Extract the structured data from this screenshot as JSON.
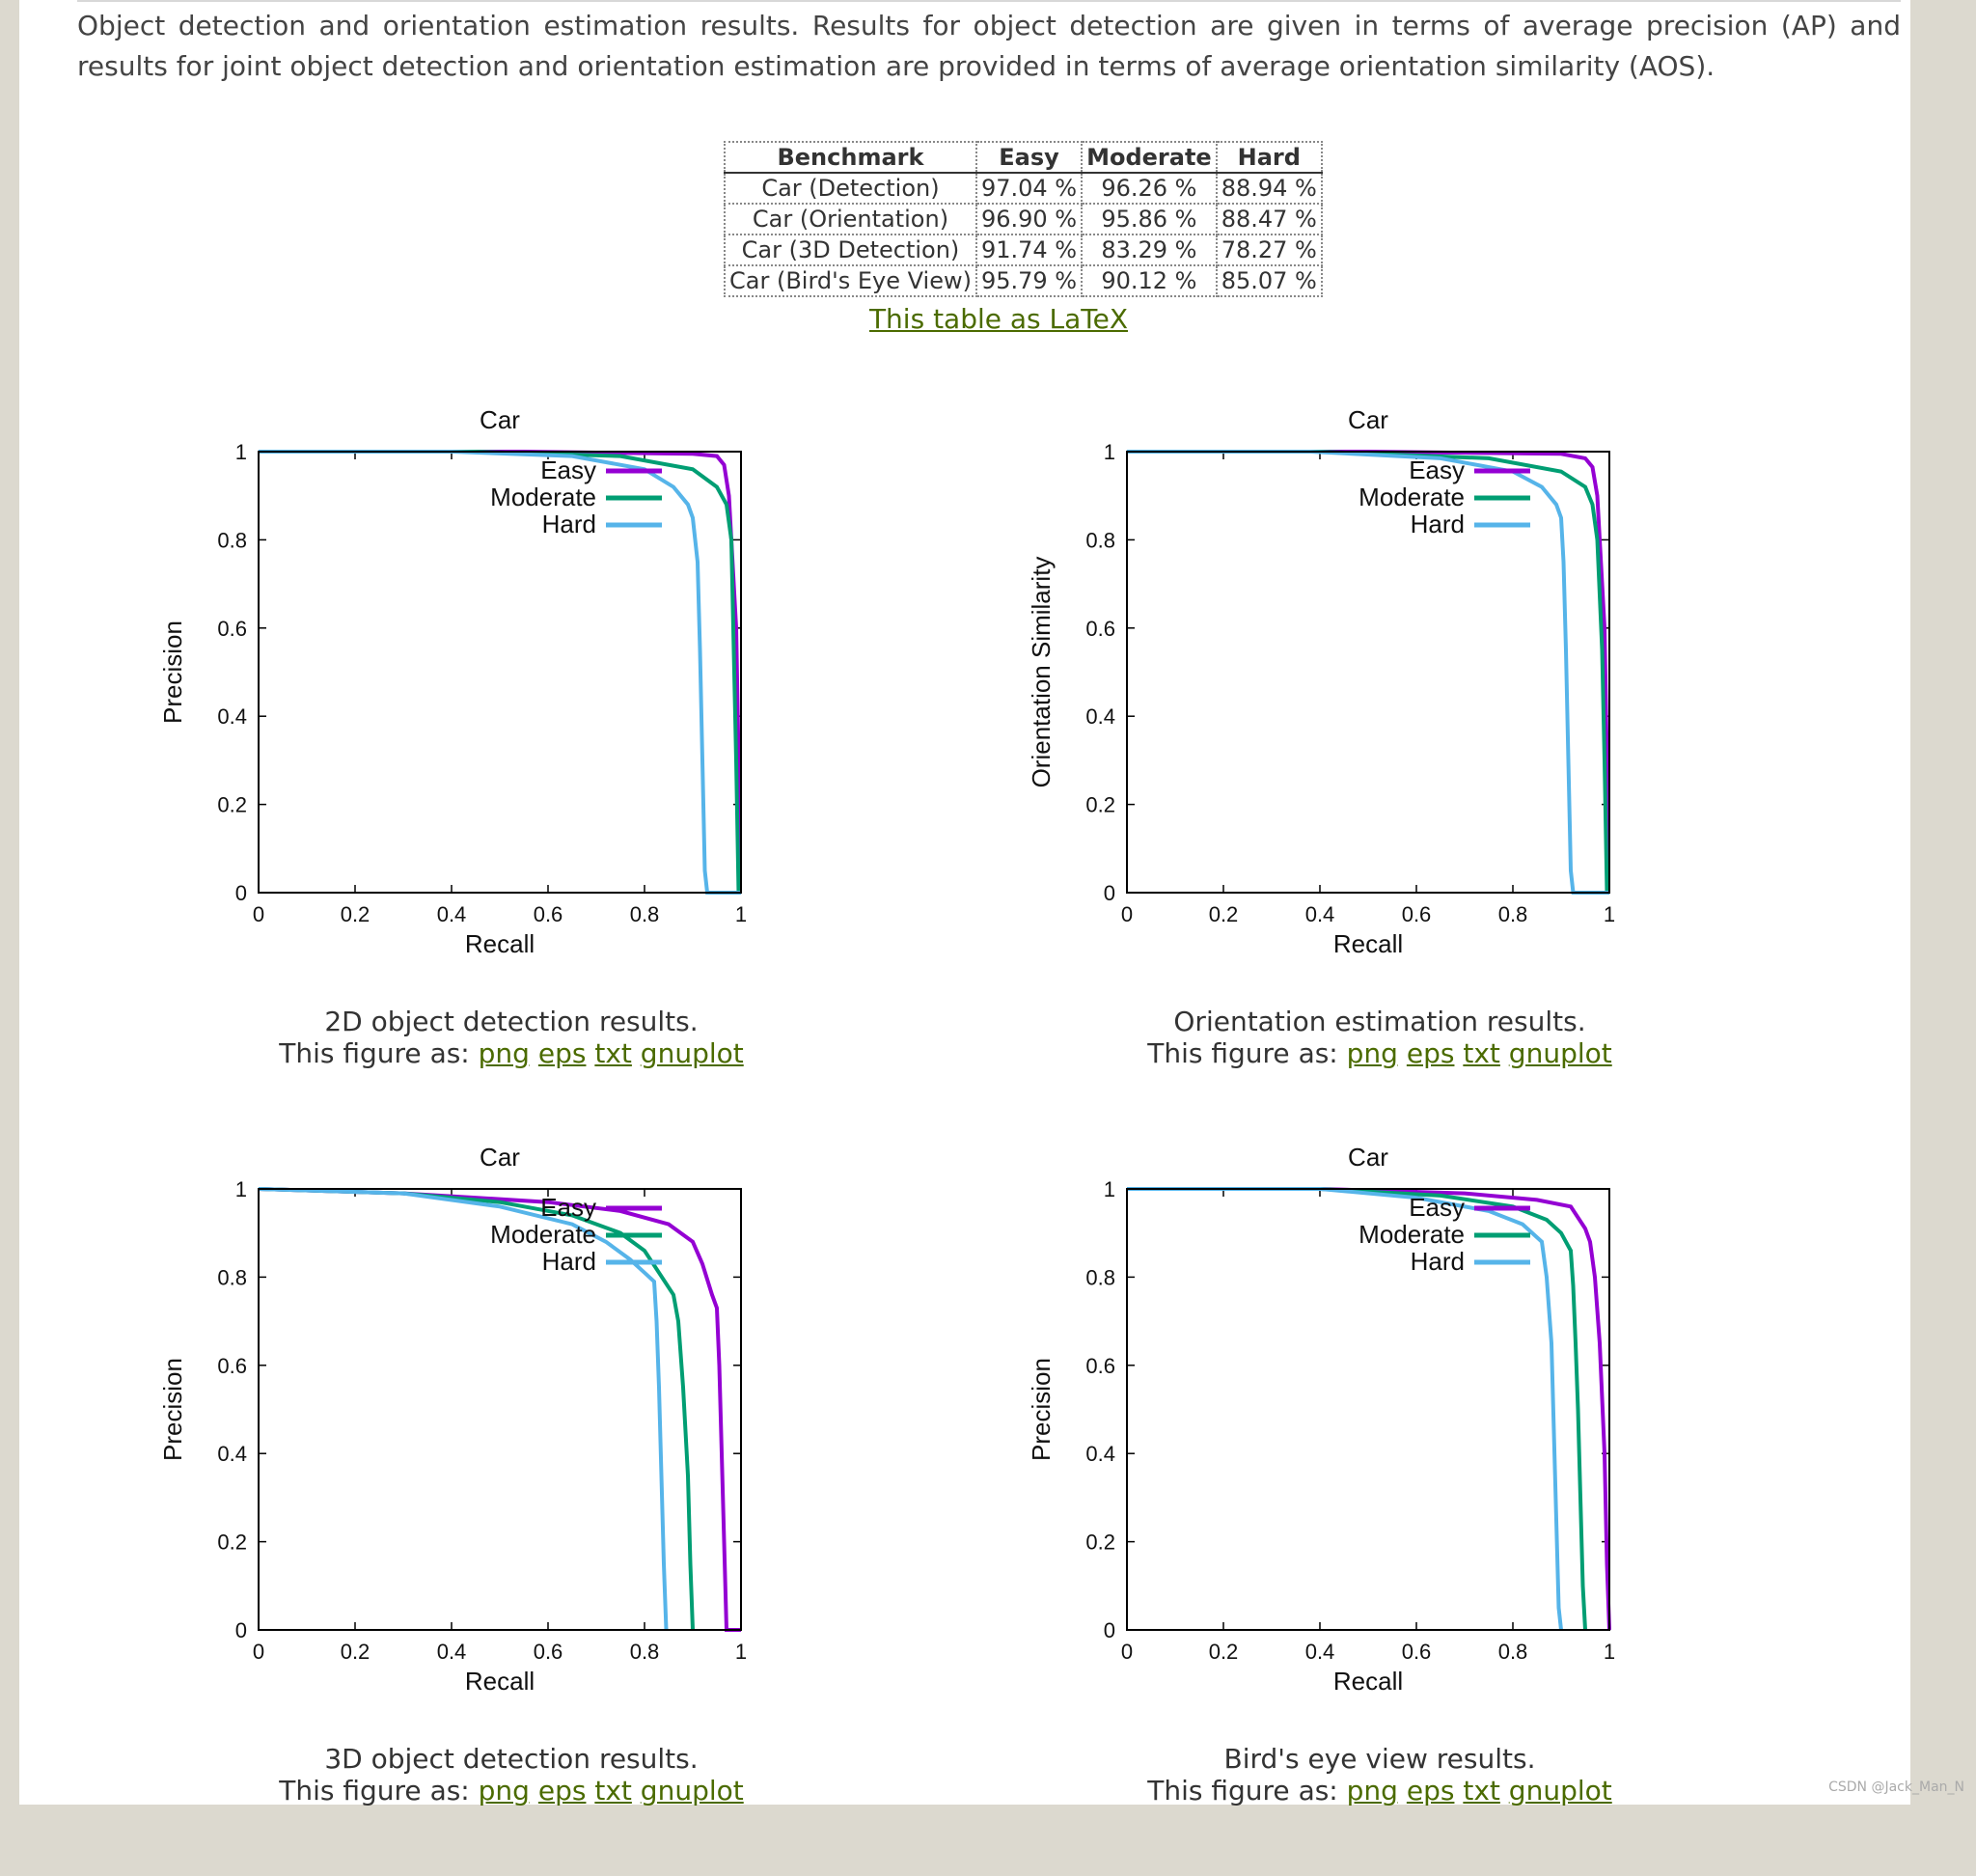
{
  "intro_text": "Object detection and orientation estimation results. Results for object detection are given in terms of average precision (AP) and results for joint object detection and orientation estimation are provided in terms of average orientation similarity (AOS).",
  "table": {
    "headers": [
      "Benchmark",
      "Easy",
      "Moderate",
      "Hard"
    ],
    "rows": [
      [
        "Car (Detection)",
        "97.04 %",
        "96.26 %",
        "88.94 %"
      ],
      [
        "Car (Orientation)",
        "96.90 %",
        "95.86 %",
        "88.47 %"
      ],
      [
        "Car (3D Detection)",
        "91.74 %",
        "83.29 %",
        "78.27 %"
      ],
      [
        "Car (Bird's Eye View)",
        "95.79 %",
        "90.12 %",
        "85.07 %"
      ]
    ],
    "latex_link": "This table as LaTeX"
  },
  "figure_links": {
    "prefix": "This figure as:",
    "png": "png",
    "eps": "eps",
    "txt": "txt",
    "gnuplot": "gnuplot"
  },
  "colors": {
    "easy": "#9400d3",
    "moderate": "#009e73",
    "hard": "#56b4e9"
  },
  "watermark": "CSDN @Jack_Man_N",
  "chart_data": [
    {
      "type": "line",
      "title": "Car",
      "xlabel": "Recall",
      "ylabel": "Precision",
      "caption": "2D object detection results.",
      "xlim": [
        0,
        1
      ],
      "ylim": [
        0,
        1
      ],
      "xticks": [
        "0",
        "0.2",
        "0.4",
        "0.6",
        "0.8",
        "1"
      ],
      "yticks": [
        "0",
        "0.2",
        "0.4",
        "0.6",
        "0.8",
        "1"
      ],
      "legend": "top-right",
      "series": [
        {
          "name": "Easy",
          "x": [
            0,
            0.55,
            0.9,
            0.95,
            0.965,
            0.975,
            0.98,
            0.99,
            0.995,
            0.997,
            1.0
          ],
          "y": [
            1,
            1,
            0.995,
            0.99,
            0.97,
            0.9,
            0.8,
            0.6,
            0.3,
            0.0,
            0.0
          ]
        },
        {
          "name": "Moderate",
          "x": [
            0,
            0.45,
            0.75,
            0.9,
            0.95,
            0.97,
            0.98,
            0.985,
            0.99,
            0.995,
            1.0
          ],
          "y": [
            1,
            1,
            0.99,
            0.96,
            0.92,
            0.88,
            0.8,
            0.55,
            0.3,
            0.0,
            0.0
          ]
        },
        {
          "name": "Hard",
          "x": [
            0,
            0.4,
            0.65,
            0.8,
            0.86,
            0.89,
            0.9,
            0.91,
            0.915,
            0.92,
            0.925,
            0.93,
            1.0
          ],
          "y": [
            1,
            1,
            0.99,
            0.96,
            0.92,
            0.88,
            0.85,
            0.75,
            0.55,
            0.3,
            0.05,
            0.0,
            0.0
          ]
        }
      ]
    },
    {
      "type": "line",
      "title": "Car",
      "xlabel": "Recall",
      "ylabel": "Orientation Similarity",
      "caption": "Orientation estimation results.",
      "xlim": [
        0,
        1
      ],
      "ylim": [
        0,
        1
      ],
      "xticks": [
        "0",
        "0.2",
        "0.4",
        "0.6",
        "0.8",
        "1"
      ],
      "yticks": [
        "0",
        "0.2",
        "0.4",
        "0.6",
        "0.8",
        "1"
      ],
      "legend": "top-right",
      "series": [
        {
          "name": "Easy",
          "x": [
            0,
            0.5,
            0.9,
            0.95,
            0.965,
            0.975,
            0.98,
            0.99,
            0.995,
            0.997,
            1.0
          ],
          "y": [
            1,
            1,
            0.995,
            0.985,
            0.965,
            0.9,
            0.8,
            0.6,
            0.3,
            0.0,
            0.0
          ]
        },
        {
          "name": "Moderate",
          "x": [
            0,
            0.4,
            0.75,
            0.9,
            0.95,
            0.965,
            0.975,
            0.985,
            0.99,
            0.995,
            1.0
          ],
          "y": [
            1,
            1,
            0.985,
            0.955,
            0.92,
            0.88,
            0.8,
            0.55,
            0.3,
            0.0,
            0.0
          ]
        },
        {
          "name": "Hard",
          "x": [
            0,
            0.38,
            0.65,
            0.8,
            0.86,
            0.89,
            0.9,
            0.905,
            0.91,
            0.915,
            0.92,
            0.925,
            1.0
          ],
          "y": [
            1,
            1,
            0.985,
            0.955,
            0.92,
            0.88,
            0.85,
            0.75,
            0.55,
            0.3,
            0.05,
            0.0,
            0.0
          ]
        }
      ]
    },
    {
      "type": "line",
      "title": "Car",
      "xlabel": "Recall",
      "ylabel": "Precision",
      "caption": "3D object detection results.",
      "xlim": [
        0,
        1
      ],
      "ylim": [
        0,
        1
      ],
      "xticks": [
        "0",
        "0.2",
        "0.4",
        "0.6",
        "0.8",
        "1"
      ],
      "yticks": [
        "0",
        "0.2",
        "0.4",
        "0.6",
        "0.8",
        "1"
      ],
      "legend": "top-right",
      "series": [
        {
          "name": "Easy",
          "x": [
            0,
            0.3,
            0.6,
            0.75,
            0.85,
            0.9,
            0.92,
            0.94,
            0.95,
            0.955,
            0.96,
            0.965,
            0.97,
            1.0
          ],
          "y": [
            1,
            0.99,
            0.97,
            0.95,
            0.92,
            0.88,
            0.83,
            0.76,
            0.73,
            0.6,
            0.4,
            0.2,
            0.0,
            0.0
          ]
        },
        {
          "name": "Moderate",
          "x": [
            0,
            0.3,
            0.5,
            0.65,
            0.75,
            0.8,
            0.83,
            0.86,
            0.87,
            0.88,
            0.89,
            0.895,
            0.9
          ],
          "y": [
            1,
            0.99,
            0.97,
            0.94,
            0.9,
            0.86,
            0.81,
            0.76,
            0.7,
            0.55,
            0.35,
            0.15,
            0.0
          ]
        },
        {
          "name": "Hard",
          "x": [
            0,
            0.3,
            0.5,
            0.65,
            0.72,
            0.77,
            0.8,
            0.82,
            0.825,
            0.83,
            0.835,
            0.84,
            0.845
          ],
          "y": [
            1,
            0.99,
            0.96,
            0.92,
            0.88,
            0.84,
            0.81,
            0.79,
            0.7,
            0.55,
            0.35,
            0.15,
            0.0
          ]
        }
      ]
    },
    {
      "type": "line",
      "title": "Car",
      "xlabel": "Recall",
      "ylabel": "Precision",
      "caption": "Bird's eye view results.",
      "xlim": [
        0,
        1
      ],
      "ylim": [
        0,
        1
      ],
      "xticks": [
        "0",
        "0.2",
        "0.4",
        "0.6",
        "0.8",
        "1"
      ],
      "yticks": [
        "0",
        "0.2",
        "0.4",
        "0.6",
        "0.8",
        "1"
      ],
      "legend": "top-right",
      "series": [
        {
          "name": "Easy",
          "x": [
            0,
            0.4,
            0.7,
            0.85,
            0.92,
            0.95,
            0.96,
            0.97,
            0.98,
            0.99,
            0.995,
            1.0
          ],
          "y": [
            1,
            1,
            0.99,
            0.975,
            0.96,
            0.91,
            0.88,
            0.8,
            0.65,
            0.4,
            0.15,
            0.0
          ]
        },
        {
          "name": "Moderate",
          "x": [
            0,
            0.4,
            0.65,
            0.8,
            0.87,
            0.9,
            0.92,
            0.925,
            0.93,
            0.935,
            0.94,
            0.945,
            0.95
          ],
          "y": [
            1,
            1,
            0.985,
            0.96,
            0.93,
            0.9,
            0.86,
            0.78,
            0.65,
            0.5,
            0.3,
            0.1,
            0.0
          ]
        },
        {
          "name": "Hard",
          "x": [
            0,
            0.4,
            0.6,
            0.75,
            0.82,
            0.86,
            0.87,
            0.88,
            0.885,
            0.89,
            0.895,
            0.9
          ],
          "y": [
            1,
            1,
            0.98,
            0.95,
            0.92,
            0.88,
            0.8,
            0.65,
            0.45,
            0.25,
            0.05,
            0.0
          ]
        }
      ]
    }
  ]
}
